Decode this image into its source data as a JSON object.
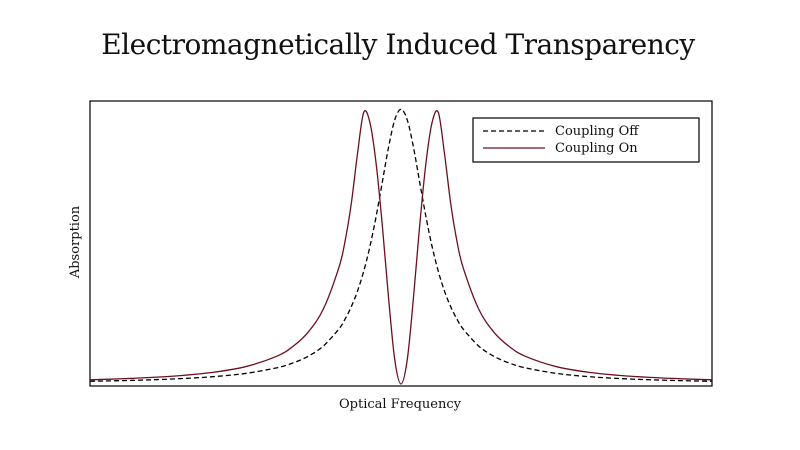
{
  "chart_data": {
    "type": "line",
    "title": "Electromagnetically Induced Transparency",
    "xlabel": "Optical Frequency",
    "ylabel": "Absorption",
    "xlim": [
      -10,
      10
    ],
    "ylim": [
      0,
      1.03
    ],
    "show_ticks": false,
    "grid": false,
    "legend_position": "top-right",
    "x": [
      -10,
      -9,
      -8,
      -7,
      -6,
      -5,
      -4,
      -3.5,
      -3,
      -2.5,
      -2,
      -1.8,
      -1.6,
      -1.4,
      -1.2,
      -1,
      -0.8,
      -0.6,
      -0.4,
      -0.2,
      0,
      0.2,
      0.4,
      0.6,
      0.8,
      1,
      1.2,
      1.4,
      1.6,
      1.8,
      2,
      2.5,
      3,
      3.5,
      4,
      5,
      6,
      7,
      8,
      9,
      10
    ],
    "series": [
      {
        "name": "Coupling Off",
        "style": "dashed",
        "color": "#000000",
        "values": [
          0.0099,
          0.0122,
          0.0154,
          0.02,
          0.027,
          0.0385,
          0.0588,
          0.0755,
          0.1,
          0.1379,
          0.2,
          0.2358,
          0.2809,
          0.3378,
          0.4098,
          0.5,
          0.6098,
          0.7353,
          0.8621,
          0.9615,
          1.0,
          0.9615,
          0.8621,
          0.7353,
          0.6098,
          0.5,
          0.4098,
          0.3378,
          0.2809,
          0.2358,
          0.2,
          0.1379,
          0.1,
          0.0755,
          0.0588,
          0.0385,
          0.027,
          0.02,
          0.0154,
          0.0122,
          0.0099
        ]
      },
      {
        "name": "Coupling On",
        "style": "solid",
        "color": "#6b1020",
        "values": [
          0.0153,
          0.019,
          0.024,
          0.0314,
          0.0432,
          0.063,
          0.1008,
          0.1346,
          0.1868,
          0.2721,
          0.4227,
          0.519,
          0.6553,
          0.8372,
          0.988,
          0.952,
          0.8024,
          0.576,
          0.3132,
          0.0878,
          0.0,
          0.0878,
          0.3132,
          0.576,
          0.8024,
          0.952,
          0.988,
          0.8372,
          0.6553,
          0.519,
          0.4227,
          0.2721,
          0.1868,
          0.1346,
          0.1008,
          0.063,
          0.0432,
          0.0314,
          0.024,
          0.019,
          0.0153
        ]
      }
    ]
  }
}
